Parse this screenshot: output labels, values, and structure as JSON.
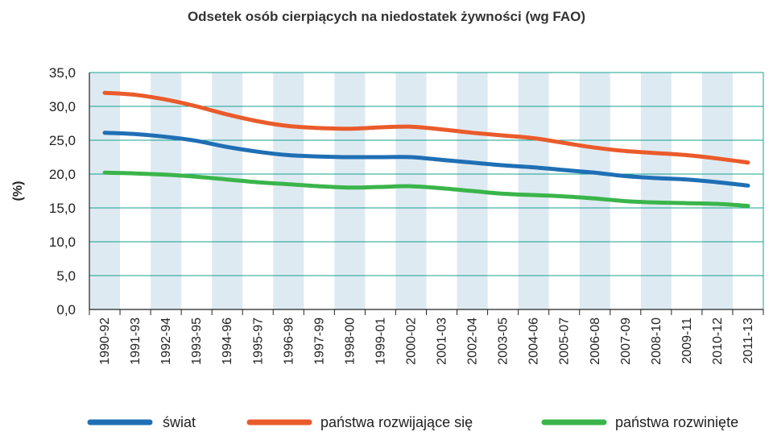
{
  "chart_data": {
    "type": "line",
    "title": "Odsetek osób cierpiących na niedostatek żywności (wg FAO)",
    "xlabel": "",
    "ylabel": "(%)",
    "ylim": [
      0,
      35
    ],
    "yticks": [
      "0,0",
      "5,0",
      "10,0",
      "15,0",
      "20,0",
      "25,0",
      "30,0",
      "35,0"
    ],
    "categories": [
      "1990-92",
      "1991-93",
      "1992-94",
      "1993-95",
      "1994-96",
      "1995-97",
      "1996-98",
      "1997-99",
      "1998-00",
      "1999-01",
      "2000-02",
      "2001-03",
      "2002-04",
      "2003-05",
      "2004-06",
      "2005-07",
      "2006-08",
      "2007-09",
      "2008-10",
      "2009-11",
      "2010-12",
      "2011-13"
    ],
    "series": [
      {
        "name": "świat",
        "color": "#1f6fb5",
        "values": [
          26.1,
          25.9,
          25.5,
          24.9,
          24.0,
          23.3,
          22.8,
          22.6,
          22.5,
          22.5,
          22.5,
          22.1,
          21.7,
          21.3,
          21.0,
          20.6,
          20.2,
          19.7,
          19.4,
          19.2,
          18.8,
          18.3
        ]
      },
      {
        "name": "państwa rozwijające się",
        "color": "#ea5b2b",
        "values": [
          32.0,
          31.7,
          31.0,
          30.0,
          28.8,
          27.8,
          27.1,
          26.8,
          26.7,
          26.9,
          27.0,
          26.6,
          26.1,
          25.7,
          25.3,
          24.6,
          23.9,
          23.4,
          23.1,
          22.8,
          22.3,
          21.7
        ]
      },
      {
        "name": "państwa rozwinięte",
        "color": "#3ab54a",
        "values": [
          20.2,
          20.1,
          19.9,
          19.6,
          19.2,
          18.8,
          18.5,
          18.2,
          18.0,
          18.1,
          18.2,
          17.9,
          17.5,
          17.1,
          16.9,
          16.7,
          16.4,
          16.0,
          15.8,
          15.7,
          15.6,
          15.3
        ]
      }
    ],
    "grid": true,
    "legend_position": "bottom",
    "colors": {
      "gridline": "#14a38f",
      "stripe": "#deeaf2",
      "axis": "#222222"
    }
  }
}
